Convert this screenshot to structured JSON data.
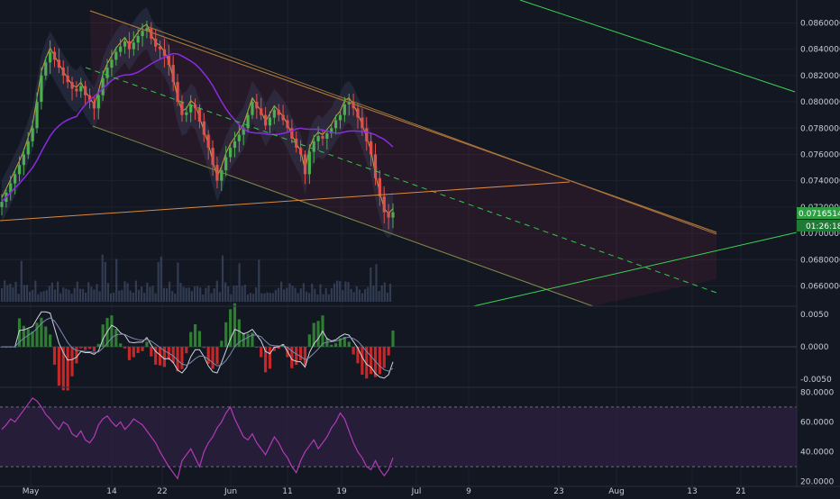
{
  "colors": {
    "background": "#131722",
    "grid": "#1e2230",
    "axis_text": "#c9ccd6",
    "candle_up": "#4caf50",
    "candle_down": "#e0504c",
    "ma_purple": "#8a2be2",
    "channel_line": "#a8733a",
    "channel_lower": "#7c8b4b",
    "bright_green": "#39d353",
    "dashed_green": "#31c94b",
    "price_tag": "#2ea043",
    "timer_tag": "#1e7a35",
    "band_fill": "#3b4660",
    "macd_hist_up": "#2e7d32",
    "macd_hist_down": "#c62828",
    "rsi_line": "#b33ab8",
    "rsi_band": "#2c1f3f"
  },
  "chart_data": [
    {
      "type": "candlestick",
      "panel": "price",
      "x_labels": [
        "May",
        "14",
        "22",
        "Jun",
        "11",
        "19",
        "Jul",
        "9",
        "23",
        "Aug",
        "13",
        "21"
      ],
      "y_ticks": [
        "0.08600000",
        "0.08400000",
        "0.08200000",
        "0.08000000",
        "0.07800000",
        "0.07600000",
        "0.07400000",
        "0.07200000",
        "0.07000000",
        "0.06800000",
        "0.06600000"
      ],
      "ylim": [
        0.0648,
        0.0874
      ],
      "current_price": "0.07165141",
      "countdown": "01:26:18",
      "close_series": [
        0.0724,
        0.0731,
        0.0738,
        0.0745,
        0.0752,
        0.076,
        0.077,
        0.078,
        0.08,
        0.082,
        0.083,
        0.0838,
        0.0832,
        0.0826,
        0.082,
        0.0815,
        0.081,
        0.0808,
        0.0812,
        0.0805,
        0.08,
        0.0795,
        0.0805,
        0.0818,
        0.0826,
        0.0832,
        0.0838,
        0.0842,
        0.0846,
        0.084,
        0.0845,
        0.085,
        0.0854,
        0.0856,
        0.0848,
        0.0842,
        0.084,
        0.0835,
        0.0828,
        0.0815,
        0.08,
        0.079,
        0.0792,
        0.0798,
        0.0795,
        0.0785,
        0.0775,
        0.0765,
        0.0752,
        0.074,
        0.0748,
        0.0758,
        0.0765,
        0.077,
        0.0775,
        0.078,
        0.079,
        0.08,
        0.0795,
        0.079,
        0.0782,
        0.0788,
        0.0794,
        0.079,
        0.0786,
        0.078,
        0.0772,
        0.0765,
        0.076,
        0.0745,
        0.0762,
        0.077,
        0.0774,
        0.0772,
        0.0776,
        0.078,
        0.0786,
        0.079,
        0.0798,
        0.08,
        0.0795,
        0.0788,
        0.078,
        0.077,
        0.076,
        0.0742,
        0.0728,
        0.0716,
        0.0712,
        0.0716
      ]
    },
    {
      "type": "histogram",
      "panel": "macd",
      "y_ticks": [
        "0.0050",
        "0.0000",
        "-0.0050"
      ],
      "ylim": [
        -0.006,
        0.006
      ]
    },
    {
      "type": "line",
      "panel": "rsi",
      "y_ticks": [
        "80.0000",
        "60.0000",
        "40.0000",
        "20.0000"
      ],
      "ylim": [
        18,
        82
      ],
      "band": [
        30,
        70
      ],
      "values": [
        55,
        58,
        62,
        60,
        64,
        68,
        72,
        76,
        74,
        70,
        65,
        62,
        58,
        55,
        60,
        58,
        52,
        50,
        54,
        48,
        46,
        50,
        58,
        62,
        64,
        60,
        57,
        60,
        55,
        58,
        62,
        60,
        58,
        54,
        50,
        46,
        40,
        35,
        30,
        26,
        22,
        34,
        38,
        42,
        36,
        30,
        40,
        46,
        50,
        56,
        60,
        66,
        70,
        62,
        56,
        50,
        48,
        52,
        46,
        42,
        38,
        44,
        50,
        46,
        40,
        36,
        30,
        26,
        34,
        40,
        44,
        48,
        42,
        46,
        50,
        56,
        60,
        66,
        62,
        54,
        46,
        40,
        36,
        30,
        28,
        34,
        28,
        24,
        28,
        36
      ]
    }
  ]
}
